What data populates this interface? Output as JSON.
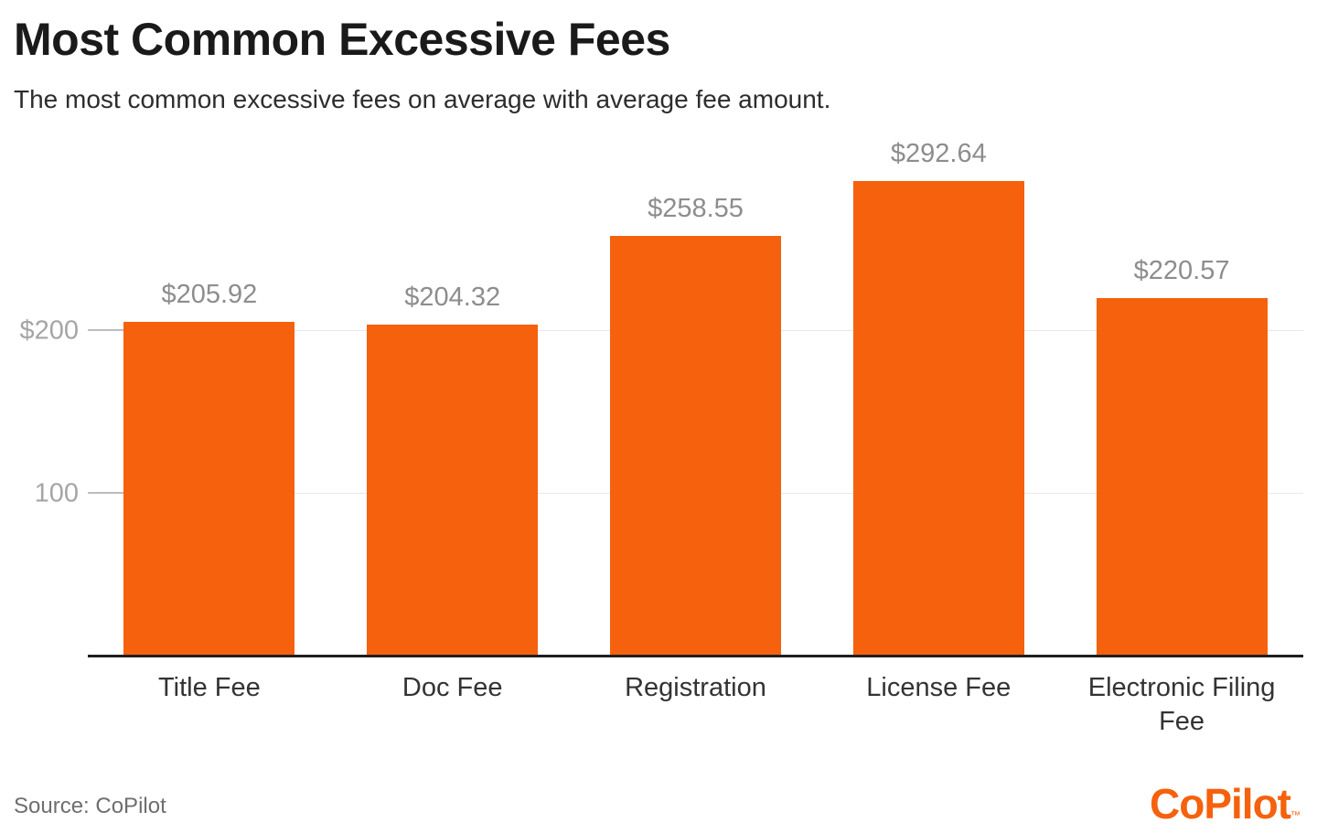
{
  "header": {
    "title": "Most Common Excessive Fees",
    "subtitle": "The most common excessive fees on average with average fee amount."
  },
  "footer": {
    "source": "Source: CoPilot",
    "logo_text": "CoPilot",
    "logo_tm": "TM"
  },
  "colors": {
    "bar": "#f5610d",
    "brand": "#f5610d",
    "gridline": "#e8e8e8",
    "axis": "#1f1f1f",
    "value_label": "#8d8d8d",
    "tick_label": "#a5a5a5"
  },
  "chart_data": {
    "type": "bar",
    "title": "Most Common Excessive Fees",
    "subtitle": "The most common excessive fees on average with average fee amount.",
    "categories": [
      "Title Fee",
      "Doc Fee",
      "Registration",
      "License Fee",
      "Electronic Filing Fee"
    ],
    "values": [
      205.92,
      204.32,
      258.55,
      292.64,
      220.57
    ],
    "value_labels": [
      "$205.92",
      "$204.32",
      "$258.55",
      "$292.64",
      "$220.57"
    ],
    "xlabel": "",
    "ylabel": "",
    "ylim": [
      0,
      325
    ],
    "yticks": [
      {
        "value": 100,
        "label": "100"
      },
      {
        "value": 200,
        "label": "$200"
      }
    ],
    "grid": "horizontal",
    "legend": "none",
    "bar_color": "#f5610d",
    "source": "CoPilot"
  }
}
